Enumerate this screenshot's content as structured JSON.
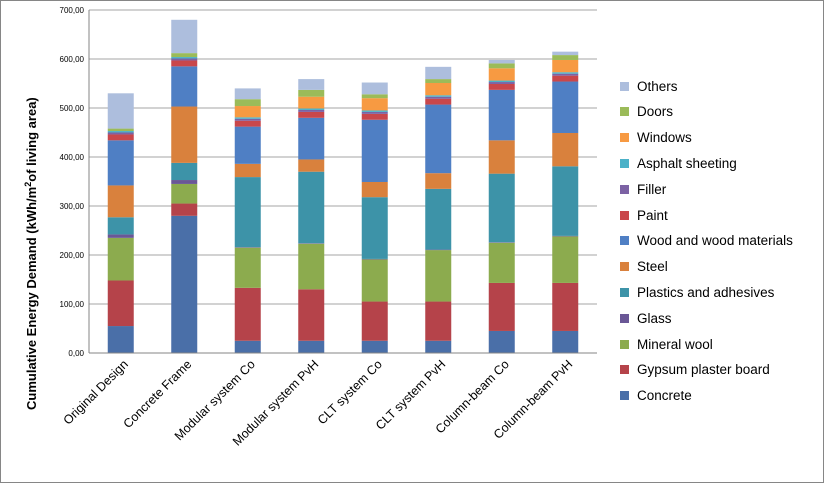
{
  "chart_data": {
    "type": "bar",
    "stacked": true,
    "categories": [
      "Original Design",
      "Concrete Frame",
      "Modular system Co",
      "Modular system PvH",
      "CLT system Co",
      "CLT system PvH",
      "Column-beam Co",
      "Column-beam PvH"
    ],
    "ylabel": {
      "prefix": "Cumulative Energy Demand (kWh/m",
      "sup": "2",
      "suffix": "of living area)"
    },
    "ylim": [
      0,
      700
    ],
    "yticks": [
      "0,00",
      "100,00",
      "200,00",
      "300,00",
      "400,00",
      "500,00",
      "600,00",
      "700,00"
    ],
    "grid": true,
    "legend_position": "right",
    "series": [
      {
        "name": "Concrete",
        "color": "#4a6fa8",
        "values": [
          55,
          280,
          25,
          25,
          25,
          25,
          45,
          45
        ]
      },
      {
        "name": "Gypsum plaster board",
        "color": "#b5434a",
        "values": [
          93,
          25,
          108,
          105,
          80,
          80,
          98,
          98
        ]
      },
      {
        "name": "Mineral wool",
        "color": "#8cab4e",
        "values": [
          87,
          40,
          82,
          93,
          86,
          105,
          82,
          95
        ]
      },
      {
        "name": "Glass",
        "color": "#6a5796",
        "values": [
          7,
          8,
          1,
          1,
          1,
          1,
          1,
          1
        ]
      },
      {
        "name": "Plastics and adhesives",
        "color": "#3d93a8",
        "values": [
          35,
          35,
          143,
          146,
          126,
          124,
          140,
          142
        ]
      },
      {
        "name": "Steel",
        "color": "#d9813d",
        "values": [
          65,
          115,
          27,
          25,
          31,
          32,
          68,
          68
        ]
      },
      {
        "name": "Wood and wood materials",
        "color": "#4f7fc4",
        "values": [
          92,
          82,
          76,
          85,
          127,
          140,
          103,
          105
        ]
      },
      {
        "name": "Paint",
        "color": "#c9474b",
        "values": [
          12,
          12,
          12,
          12,
          12,
          12,
          12,
          12
        ]
      },
      {
        "name": "Filler",
        "color": "#7c62a4",
        "values": [
          4,
          4,
          4,
          4,
          4,
          4,
          4,
          4
        ]
      },
      {
        "name": "Asphalt sheeting",
        "color": "#4bb1c8",
        "values": [
          3,
          3,
          3,
          3,
          3,
          3,
          3,
          3
        ]
      },
      {
        "name": "Windows",
        "color": "#f79a42",
        "values": [
          0,
          0,
          23,
          24,
          25,
          25,
          25,
          25
        ]
      },
      {
        "name": "Doors",
        "color": "#9bbb59",
        "values": [
          5,
          8,
          14,
          14,
          8,
          8,
          10,
          10
        ]
      },
      {
        "name": "Others",
        "color": "#adbedd",
        "values": [
          72,
          68,
          22,
          22,
          24,
          25,
          7,
          7
        ]
      }
    ]
  }
}
